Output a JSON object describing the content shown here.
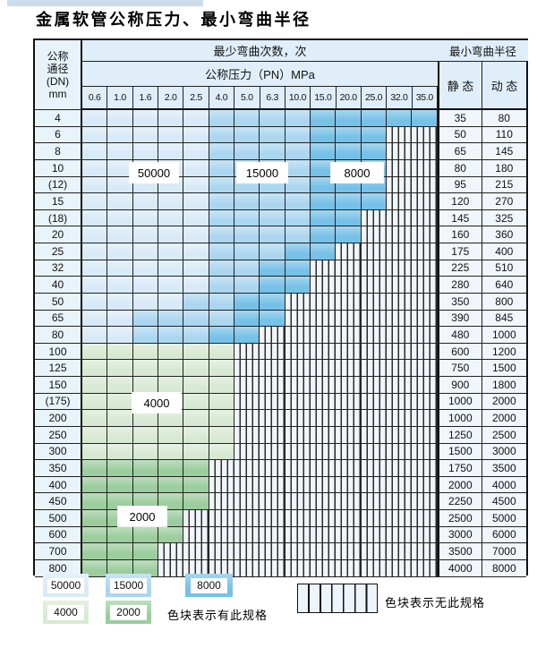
{
  "page": {
    "title": "金属软管公称压力、最小弯曲半径"
  },
  "table_header": {
    "dn_lines": [
      "公称",
      "通径",
      "(DN)",
      "mm"
    ],
    "cycles_title": "最少弯曲次数，次",
    "pressure_title": "公称压力（PN）MPa",
    "radius_title": "最小弯曲半径",
    "static_label": "静 态",
    "dynamic_label": "动 态"
  },
  "chart_data": {
    "type": "heatmap",
    "title": "金属软管公称压力、最小弯曲半径",
    "x_axis_label": "公称压力（PN）MPa",
    "y_axis_label": "公称通径 (DN) mm",
    "columns": [
      "0.6",
      "1.0",
      "1.6",
      "2.0",
      "2.5",
      "4.0",
      "5.0",
      "6.3",
      "10.0",
      "15.0",
      "20.0",
      "25.0",
      "32.0",
      "35.0"
    ],
    "cell_value_meaning": "最少弯曲次数，次 (minimum bend cycles); none = 无此规格 (hatched)",
    "rows": [
      {
        "dn": "4",
        "static": "35",
        "dynamic": "80",
        "bands": [
          [
            "50000",
            5
          ],
          [
            "15000",
            4
          ],
          [
            "8000",
            5
          ]
        ]
      },
      {
        "dn": "6",
        "static": "50",
        "dynamic": "110",
        "bands": [
          [
            "50000",
            5
          ],
          [
            "15000",
            4
          ],
          [
            "8000",
            3
          ],
          [
            "none",
            2
          ]
        ]
      },
      {
        "dn": "8",
        "static": "65",
        "dynamic": "145",
        "bands": [
          [
            "50000",
            5
          ],
          [
            "15000",
            4
          ],
          [
            "8000",
            3
          ],
          [
            "none",
            2
          ]
        ]
      },
      {
        "dn": "10",
        "static": "80",
        "dynamic": "180",
        "bands": [
          [
            "50000",
            5
          ],
          [
            "15000",
            4
          ],
          [
            "8000",
            3
          ],
          [
            "none",
            2
          ]
        ]
      },
      {
        "dn": "(12)",
        "static": "95",
        "dynamic": "215",
        "bands": [
          [
            "50000",
            5
          ],
          [
            "15000",
            4
          ],
          [
            "8000",
            3
          ],
          [
            "none",
            2
          ]
        ]
      },
      {
        "dn": "15",
        "static": "120",
        "dynamic": "270",
        "bands": [
          [
            "50000",
            5
          ],
          [
            "15000",
            4
          ],
          [
            "8000",
            3
          ],
          [
            "none",
            2
          ]
        ]
      },
      {
        "dn": "(18)",
        "static": "145",
        "dynamic": "325",
        "bands": [
          [
            "50000",
            5
          ],
          [
            "15000",
            4
          ],
          [
            "8000",
            2
          ],
          [
            "none",
            3
          ]
        ]
      },
      {
        "dn": "20",
        "static": "160",
        "dynamic": "360",
        "bands": [
          [
            "50000",
            5
          ],
          [
            "15000",
            4
          ],
          [
            "8000",
            2
          ],
          [
            "none",
            3
          ]
        ]
      },
      {
        "dn": "25",
        "static": "175",
        "dynamic": "400",
        "bands": [
          [
            "50000",
            5
          ],
          [
            "15000",
            3
          ],
          [
            "8000",
            2
          ],
          [
            "none",
            4
          ]
        ]
      },
      {
        "dn": "32",
        "static": "225",
        "dynamic": "510",
        "bands": [
          [
            "50000",
            5
          ],
          [
            "15000",
            2
          ],
          [
            "8000",
            2
          ],
          [
            "none",
            5
          ]
        ]
      },
      {
        "dn": "40",
        "static": "280",
        "dynamic": "640",
        "bands": [
          [
            "50000",
            5
          ],
          [
            "15000",
            2
          ],
          [
            "8000",
            2
          ],
          [
            "none",
            5
          ]
        ]
      },
      {
        "dn": "50",
        "static": "350",
        "dynamic": "800",
        "bands": [
          [
            "50000",
            4
          ],
          [
            "15000",
            2
          ],
          [
            "8000",
            2
          ],
          [
            "none",
            6
          ]
        ]
      },
      {
        "dn": "65",
        "static": "390",
        "dynamic": "845",
        "bands": [
          [
            "50000",
            2
          ],
          [
            "15000",
            4
          ],
          [
            "8000",
            2
          ],
          [
            "none",
            6
          ]
        ]
      },
      {
        "dn": "80",
        "static": "480",
        "dynamic": "1000",
        "bands": [
          [
            "50000",
            2
          ],
          [
            "15000",
            3
          ],
          [
            "8000",
            2
          ],
          [
            "none",
            7
          ]
        ]
      },
      {
        "dn": "100",
        "static": "600",
        "dynamic": "1200",
        "bands": [
          [
            "4000",
            6
          ],
          [
            "none",
            8
          ]
        ]
      },
      {
        "dn": "125",
        "static": "750",
        "dynamic": "1500",
        "bands": [
          [
            "4000",
            6
          ],
          [
            "none",
            8
          ]
        ]
      },
      {
        "dn": "150",
        "static": "900",
        "dynamic": "1800",
        "bands": [
          [
            "4000",
            6
          ],
          [
            "none",
            8
          ]
        ]
      },
      {
        "dn": "(175)",
        "static": "1000",
        "dynamic": "2000",
        "bands": [
          [
            "4000",
            6
          ],
          [
            "none",
            8
          ]
        ]
      },
      {
        "dn": "200",
        "static": "1000",
        "dynamic": "2000",
        "bands": [
          [
            "4000",
            6
          ],
          [
            "none",
            8
          ]
        ]
      },
      {
        "dn": "250",
        "static": "1250",
        "dynamic": "2500",
        "bands": [
          [
            "4000",
            6
          ],
          [
            "none",
            8
          ]
        ]
      },
      {
        "dn": "300",
        "static": "1500",
        "dynamic": "3000",
        "bands": [
          [
            "4000",
            6
          ],
          [
            "none",
            8
          ]
        ]
      },
      {
        "dn": "350",
        "static": "1750",
        "dynamic": "3500",
        "bands": [
          [
            "2000",
            5
          ],
          [
            "none",
            9
          ]
        ]
      },
      {
        "dn": "400",
        "static": "2000",
        "dynamic": "4000",
        "bands": [
          [
            "2000",
            5
          ],
          [
            "none",
            9
          ]
        ]
      },
      {
        "dn": "450",
        "static": "2250",
        "dynamic": "4500",
        "bands": [
          [
            "2000",
            5
          ],
          [
            "none",
            9
          ]
        ]
      },
      {
        "dn": "500",
        "static": "2500",
        "dynamic": "5000",
        "bands": [
          [
            "2000",
            4
          ],
          [
            "none",
            10
          ]
        ]
      },
      {
        "dn": "600",
        "static": "3000",
        "dynamic": "6000",
        "bands": [
          [
            "2000",
            4
          ],
          [
            "none",
            10
          ]
        ]
      },
      {
        "dn": "700",
        "static": "3500",
        "dynamic": "7000",
        "bands": [
          [
            "2000",
            3
          ],
          [
            "none",
            11
          ]
        ]
      },
      {
        "dn": "800",
        "static": "4000",
        "dynamic": "8000",
        "bands": [
          [
            "2000",
            3
          ],
          [
            "none",
            11
          ]
        ]
      }
    ],
    "colors": {
      "50000": "#d8eaf7",
      "15000": "#abd6f0",
      "8000": "#76c1e8",
      "4000": "#d8e9d3",
      "2000": "#9bcd9d"
    }
  },
  "overlays": [
    "50000",
    "15000",
    "8000",
    "4000",
    "2000"
  ],
  "legend": {
    "items": [
      {
        "value": "50000"
      },
      {
        "value": "15000"
      },
      {
        "value": "8000"
      },
      {
        "value": "4000"
      },
      {
        "value": "2000"
      }
    ],
    "available_note": "色块表示有此规格",
    "unavailable_note": "色块表示无此规格"
  }
}
